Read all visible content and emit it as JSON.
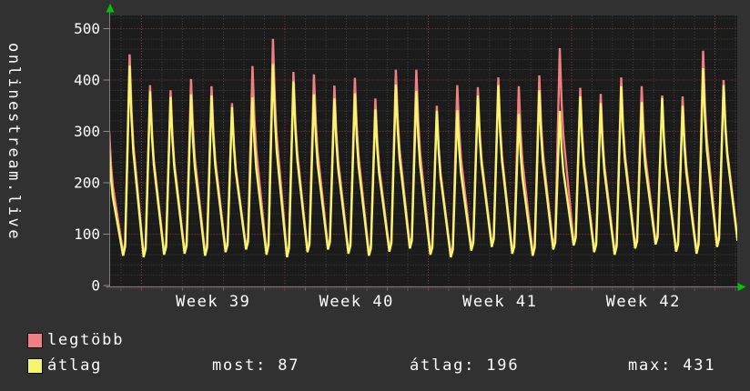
{
  "title": "onlinestream.live",
  "legend": {
    "items": [
      {
        "label": "legtöbb",
        "color": "#f08080"
      },
      {
        "label": "átlag",
        "color": "#f6f66e"
      }
    ],
    "stats": [
      {
        "label": "most",
        "value": "87",
        "text": "most: 87"
      },
      {
        "label": "átlag",
        "value": "196",
        "text": "átlag: 196"
      },
      {
        "label": "max",
        "value": "431",
        "text": "max: 431"
      }
    ]
  },
  "chart_data": {
    "type": "line",
    "title": "onlinestream.live",
    "xlabel": "",
    "ylabel": "",
    "ylim": [
      0,
      531
    ],
    "yticks": [
      0,
      100,
      200,
      300,
      400,
      500
    ],
    "grid": {
      "minor_step": 20,
      "major_step": 100,
      "minor_color": "#3f3f3f",
      "major_color": "#8e3a3a",
      "style": "dotted"
    },
    "x_axis": {
      "unit": "days",
      "days_per_week": 7,
      "week_labels": [
        "Week 39",
        "Week 40",
        "Week 41",
        "Week 42"
      ]
    },
    "legend_position": "bottom-left",
    "plot_bg": "#1b1b1b",
    "axis_color": "#7d7d7d",
    "arrow_color": "#00c300",
    "series": [
      {
        "name": "legtöbb",
        "color": "#f08080",
        "role": "daily maximum viewers",
        "daily_peaks": [
          300,
          450,
          390,
          380,
          402,
          388,
          355,
          427,
          480,
          416,
          411,
          389,
          404,
          364,
          420,
          420,
          350,
          390,
          386,
          405,
          388,
          409,
          462,
          385,
          373,
          405,
          388,
          370,
          368,
          457,
          400
        ],
        "trough_offset": 5
      },
      {
        "name": "átlag",
        "color": "#f6f66e",
        "role": "daily average viewers",
        "daily_peaks": [
          265,
          428,
          378,
          367,
          372,
          370,
          347,
          366,
          431,
          397,
          372,
          364,
          374,
          343,
          391,
          379,
          340,
          341,
          370,
          390,
          334,
          380,
          340,
          368,
          355,
          388,
          357,
          365,
          350,
          423,
          390
        ],
        "trough_offset": 0
      }
    ],
    "daily_troughs": [
      60,
      58,
      55,
      60,
      62,
      58,
      65,
      70,
      60,
      55,
      65,
      70,
      62,
      58,
      66,
      72,
      60,
      55,
      68,
      75,
      62,
      58,
      70,
      78,
      65,
      60,
      72,
      80,
      66,
      62,
      75,
      87
    ],
    "stats": {
      "most": 87,
      "átlag": 196,
      "max": 431
    }
  }
}
